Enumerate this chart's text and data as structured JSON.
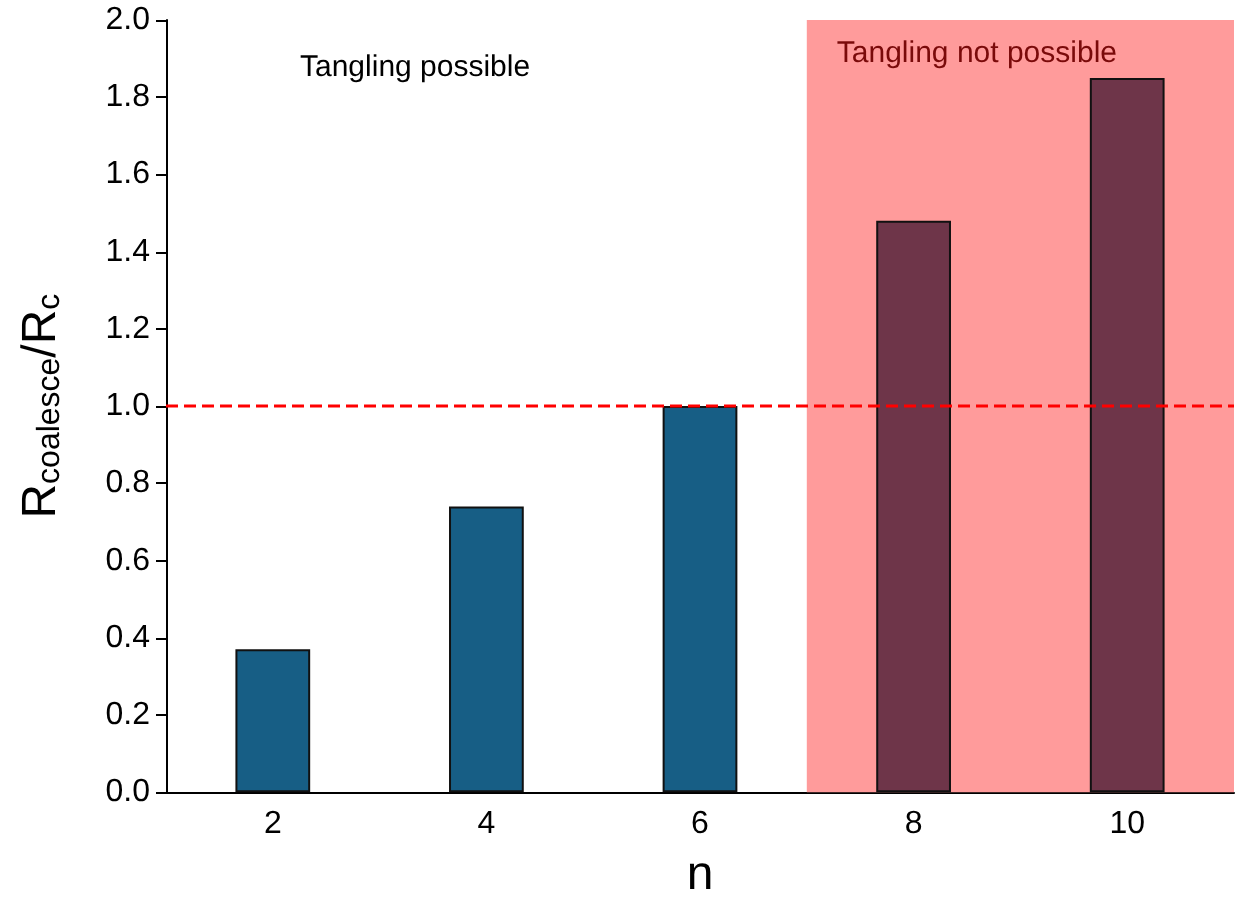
{
  "chart_data": {
    "type": "bar",
    "categories": [
      "2",
      "4",
      "6",
      "8",
      "10"
    ],
    "values": [
      0.37,
      0.74,
      1.0,
      1.48,
      1.85
    ],
    "colors": [
      "#175e85",
      "#175e85",
      "#175e85",
      "#6e3549",
      "#6e3549"
    ],
    "xlabel": "n",
    "ylabel": "R$_{coalesce}$/R$_{c}$",
    "ylim": [
      0,
      2
    ],
    "yticks": [
      {
        "value": 0,
        "label": "0.0"
      },
      {
        "value": 0.2,
        "label": "0.2"
      },
      {
        "value": 0.4,
        "label": "0.4"
      },
      {
        "value": 0.6,
        "label": "0.6"
      },
      {
        "value": 0.8,
        "label": "0.8"
      },
      {
        "value": 1,
        "label": "1.0"
      },
      {
        "value": 1.2,
        "label": "1.2"
      },
      {
        "value": 1.4,
        "label": "1.4"
      },
      {
        "value": 1.6,
        "label": "1.6"
      },
      {
        "value": 1.8,
        "label": "1.8"
      },
      {
        "value": 2,
        "label": "2.0"
      }
    ],
    "ref_lines": [
      {
        "axis": "y",
        "value": 1.0,
        "color": "#ff0000",
        "line_style": "dashed"
      }
    ],
    "bands": [
      {
        "axis": "x",
        "from": "8",
        "to": "10",
        "label": "Tangling not possible",
        "color": "#ff9b9b"
      }
    ],
    "annotations": [
      "Tangling possible"
    ]
  }
}
